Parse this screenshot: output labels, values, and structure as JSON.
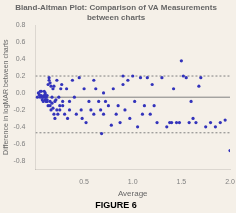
{
  "chart_data": {
    "type": "scatter",
    "title": "Bland-Altman Plot: Comparison of VA Measurements between charts",
    "xlabel": "Average",
    "ylabel": "Difference in logMAR between charts",
    "figure_label": "FIGURE 6",
    "color": "#3333bb",
    "background_color": "#f5f0e8",
    "grid": false,
    "xlim": [
      0,
      2.0
    ],
    "ylim": [
      -0.9,
      0.8
    ],
    "xticks": [
      0.5,
      {
        "value": 1.0,
        "label": "1.0"
      },
      1.5,
      {
        "value": 2.0,
        "label": "2.0"
      }
    ],
    "yticks": [
      -0.8,
      -0.6,
      -0.4,
      -0.2,
      {
        "value": 0,
        "label": "0.0"
      },
      0.2,
      0.4,
      0.6,
      0.8
    ],
    "hlines": [
      {
        "value": -0.05,
        "color": "gray",
        "line_style": "solid"
      },
      {
        "value": 0.2,
        "color": "gray",
        "line_style": "dotted"
      },
      {
        "value": -0.47,
        "color": "gray",
        "line_style": "dotted"
      }
    ],
    "x": [
      0.02,
      0.03,
      0.04,
      0.05,
      0.05,
      0.06,
      0.06,
      0.07,
      0.07,
      0.08,
      0.08,
      0.09,
      0.09,
      0.1,
      0.1,
      0.1,
      0.1,
      0.11,
      0.11,
      0.12,
      0.12,
      0.12,
      0.13,
      0.13,
      0.14,
      0.14,
      0.15,
      0.15,
      0.15,
      0.16,
      0.16,
      0.17,
      0.17,
      0.18,
      0.18,
      0.19,
      0.19,
      0.2,
      0.2,
      0.21,
      0.22,
      0.22,
      0.23,
      0.24,
      0.25,
      0.25,
      0.26,
      0.27,
      0.28,
      0.28,
      0.3,
      0.32,
      0.33,
      0.35,
      0.35,
      0.38,
      0.4,
      0.42,
      0.45,
      0.47,
      0.48,
      0.5,
      0.52,
      0.55,
      0.57,
      0.6,
      0.6,
      0.62,
      0.65,
      0.67,
      0.68,
      0.7,
      0.7,
      0.72,
      0.75,
      0.78,
      0.8,
      0.83,
      0.85,
      0.87,
      0.9,
      0.9,
      0.92,
      0.95,
      0.97,
      1.0,
      1.02,
      1.05,
      1.08,
      1.1,
      1.12,
      1.15,
      1.18,
      1.2,
      1.22,
      1.25,
      1.3,
      1.35,
      1.38,
      1.4,
      1.42,
      1.45,
      1.48,
      1.5,
      1.52,
      1.55,
      1.58,
      1.6,
      1.62,
      1.65,
      1.68,
      1.7,
      1.75,
      1.8,
      1.85,
      1.9,
      1.95,
      2.0
    ],
    "values": [
      -0.05,
      0.0,
      -0.02,
      -0.05,
      0.02,
      -0.03,
      0.02,
      -0.05,
      -0.08,
      -0.1,
      -0.05,
      -0.03,
      0.02,
      -0.08,
      -0.05,
      -0.02,
      0.0,
      -0.1,
      -0.05,
      -0.08,
      -0.03,
      -0.1,
      -0.15,
      0.1,
      0.15,
      0.18,
      -0.1,
      0.12,
      -0.15,
      0.08,
      -0.2,
      -0.05,
      -0.12,
      -0.18,
      0.05,
      -0.25,
      0.08,
      -0.3,
      -0.1,
      -0.08,
      -0.2,
      0.15,
      -0.25,
      -0.05,
      -0.15,
      -0.2,
      0.05,
      0.1,
      -0.15,
      -0.1,
      -0.25,
      0.05,
      -0.3,
      -0.1,
      -0.2,
      0.15,
      -0.05,
      -0.25,
      0.18,
      -0.2,
      -0.3,
      0.05,
      -0.35,
      -0.1,
      -0.2,
      0.15,
      -0.25,
      0.05,
      -0.1,
      -0.2,
      -0.48,
      0.0,
      -0.25,
      -0.1,
      -0.15,
      -0.38,
      0.05,
      -0.25,
      -0.15,
      -0.35,
      0.2,
      0.1,
      -0.2,
      0.15,
      -0.3,
      0.2,
      -0.1,
      -0.4,
      0.18,
      -0.25,
      -0.15,
      0.18,
      -0.25,
      0.1,
      -0.15,
      -0.35,
      0.18,
      -0.4,
      -0.35,
      -0.35,
      0.05,
      -0.35,
      -0.35,
      0.38,
      0.2,
      0.18,
      -0.35,
      -0.1,
      -0.3,
      -0.35,
      0.08,
      0.18,
      -0.4,
      -0.35,
      -0.4,
      -0.35,
      -0.32,
      -0.68
    ]
  }
}
